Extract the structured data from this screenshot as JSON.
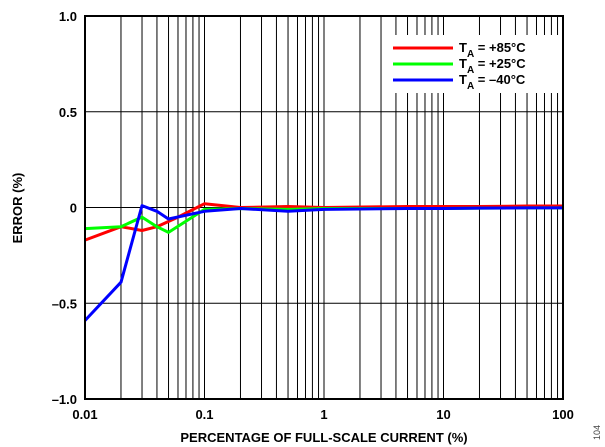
{
  "chart_data": {
    "type": "line",
    "xlabel": "PERCENTAGE OF FULL-SCALE CURRENT (%)",
    "ylabel": "ERROR (%)",
    "xscale": "log",
    "xlim": [
      0.01,
      100
    ],
    "ylim": [
      -1.0,
      1.0
    ],
    "grid": true,
    "legend_position": "top-right",
    "x_ticks": [
      {
        "value": 0.01,
        "label": "0.01"
      },
      {
        "value": 0.1,
        "label": "0.1"
      },
      {
        "value": 1,
        "label": "1"
      },
      {
        "value": 10,
        "label": "10"
      },
      {
        "value": 100,
        "label": "100"
      }
    ],
    "y_ticks": [
      {
        "value": 1.0,
        "label": "1.0"
      },
      {
        "value": 0.5,
        "label": "0.5"
      },
      {
        "value": 0,
        "label": "0"
      },
      {
        "value": -0.5,
        "label": "–0.5"
      },
      {
        "value": -1.0,
        "label": "–1.0"
      }
    ],
    "series": [
      {
        "name": "+85°C",
        "legend_prefix": "T",
        "legend_sub": "A",
        "legend_rest": " = +85°C",
        "color": "#ff0000",
        "points": [
          [
            0.01,
            -0.17
          ],
          [
            0.02,
            -0.1
          ],
          [
            0.03,
            -0.12
          ],
          [
            0.04,
            -0.1
          ],
          [
            0.06,
            -0.05
          ],
          [
            0.1,
            0.02
          ],
          [
            0.2,
            0.0
          ],
          [
            0.5,
            0.005
          ],
          [
            1,
            0.0
          ],
          [
            5,
            0.005
          ],
          [
            10,
            0.005
          ],
          [
            20,
            0.005
          ],
          [
            50,
            0.008
          ],
          [
            100,
            0.008
          ]
        ]
      },
      {
        "name": "+25°C",
        "legend_prefix": "T",
        "legend_sub": "A",
        "legend_rest": " = +25°C",
        "color": "#00ff00",
        "points": [
          [
            0.01,
            -0.11
          ],
          [
            0.02,
            -0.1
          ],
          [
            0.03,
            -0.05
          ],
          [
            0.04,
            -0.1
          ],
          [
            0.05,
            -0.13
          ],
          [
            0.1,
            -0.01
          ],
          [
            0.2,
            -0.005
          ],
          [
            0.5,
            -0.01
          ],
          [
            1,
            -0.005
          ],
          [
            5,
            -0.005
          ],
          [
            10,
            -0.005
          ],
          [
            20,
            -0.003
          ],
          [
            50,
            -0.002
          ],
          [
            100,
            -0.002
          ]
        ]
      },
      {
        "name": "–40°C",
        "legend_prefix": "T",
        "legend_sub": "A",
        "legend_rest": " = –40°C",
        "color": "#0000ff",
        "points": [
          [
            0.01,
            -0.59
          ],
          [
            0.02,
            -0.39
          ],
          [
            0.03,
            0.01
          ],
          [
            0.04,
            -0.02
          ],
          [
            0.05,
            -0.06
          ],
          [
            0.1,
            -0.02
          ],
          [
            0.2,
            -0.005
          ],
          [
            0.5,
            -0.02
          ],
          [
            1,
            -0.01
          ],
          [
            5,
            -0.005
          ],
          [
            10,
            -0.005
          ],
          [
            20,
            -0.003
          ],
          [
            50,
            -0.002
          ],
          [
            100,
            -0.002
          ]
        ]
      }
    ]
  },
  "figure_id": "104"
}
